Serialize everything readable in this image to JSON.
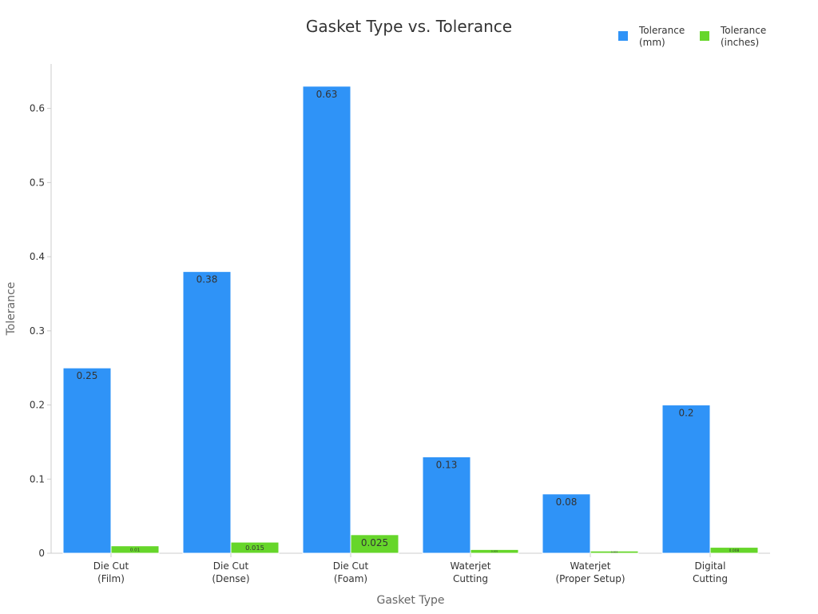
{
  "chart_data": {
    "type": "bar",
    "title": "Gasket Type vs. Tolerance",
    "xlabel": "Gasket Type",
    "ylabel": "Tolerance",
    "categories": [
      [
        "Die Cut",
        "(Film)"
      ],
      [
        "Die Cut",
        "(Dense)"
      ],
      [
        "Die Cut",
        "(Foam)"
      ],
      [
        "Waterjet",
        "Cutting"
      ],
      [
        "Waterjet",
        "(Proper Setup)"
      ],
      [
        "Digital",
        "Cutting"
      ]
    ],
    "series": [
      {
        "name": [
          "Tolerance",
          "(mm)"
        ],
        "color": "#2f93f7",
        "values": [
          0.25,
          0.38,
          0.63,
          0.13,
          0.08,
          0.2
        ],
        "labels": [
          "0.25",
          "0.38",
          "0.63",
          "0.13",
          "0.08",
          "0.2"
        ]
      },
      {
        "name": [
          "Tolerance",
          "(inches)"
        ],
        "color": "#66d62a",
        "values": [
          0.01,
          0.015,
          0.025,
          0.005,
          0.003,
          0.008
        ],
        "labels": [
          "0.01",
          "0.015",
          "0.025",
          "0.005",
          "0.003",
          "0.008"
        ]
      }
    ],
    "ylim": [
      0,
      0.66
    ],
    "yticks": [
      0,
      0.1,
      0.2,
      0.3,
      0.4,
      0.5,
      0.6
    ],
    "ytick_labels": [
      "0",
      "0.1",
      "0.2",
      "0.3",
      "0.4",
      "0.5",
      "0.6"
    ],
    "grid": false,
    "legend_position": "top-right"
  }
}
